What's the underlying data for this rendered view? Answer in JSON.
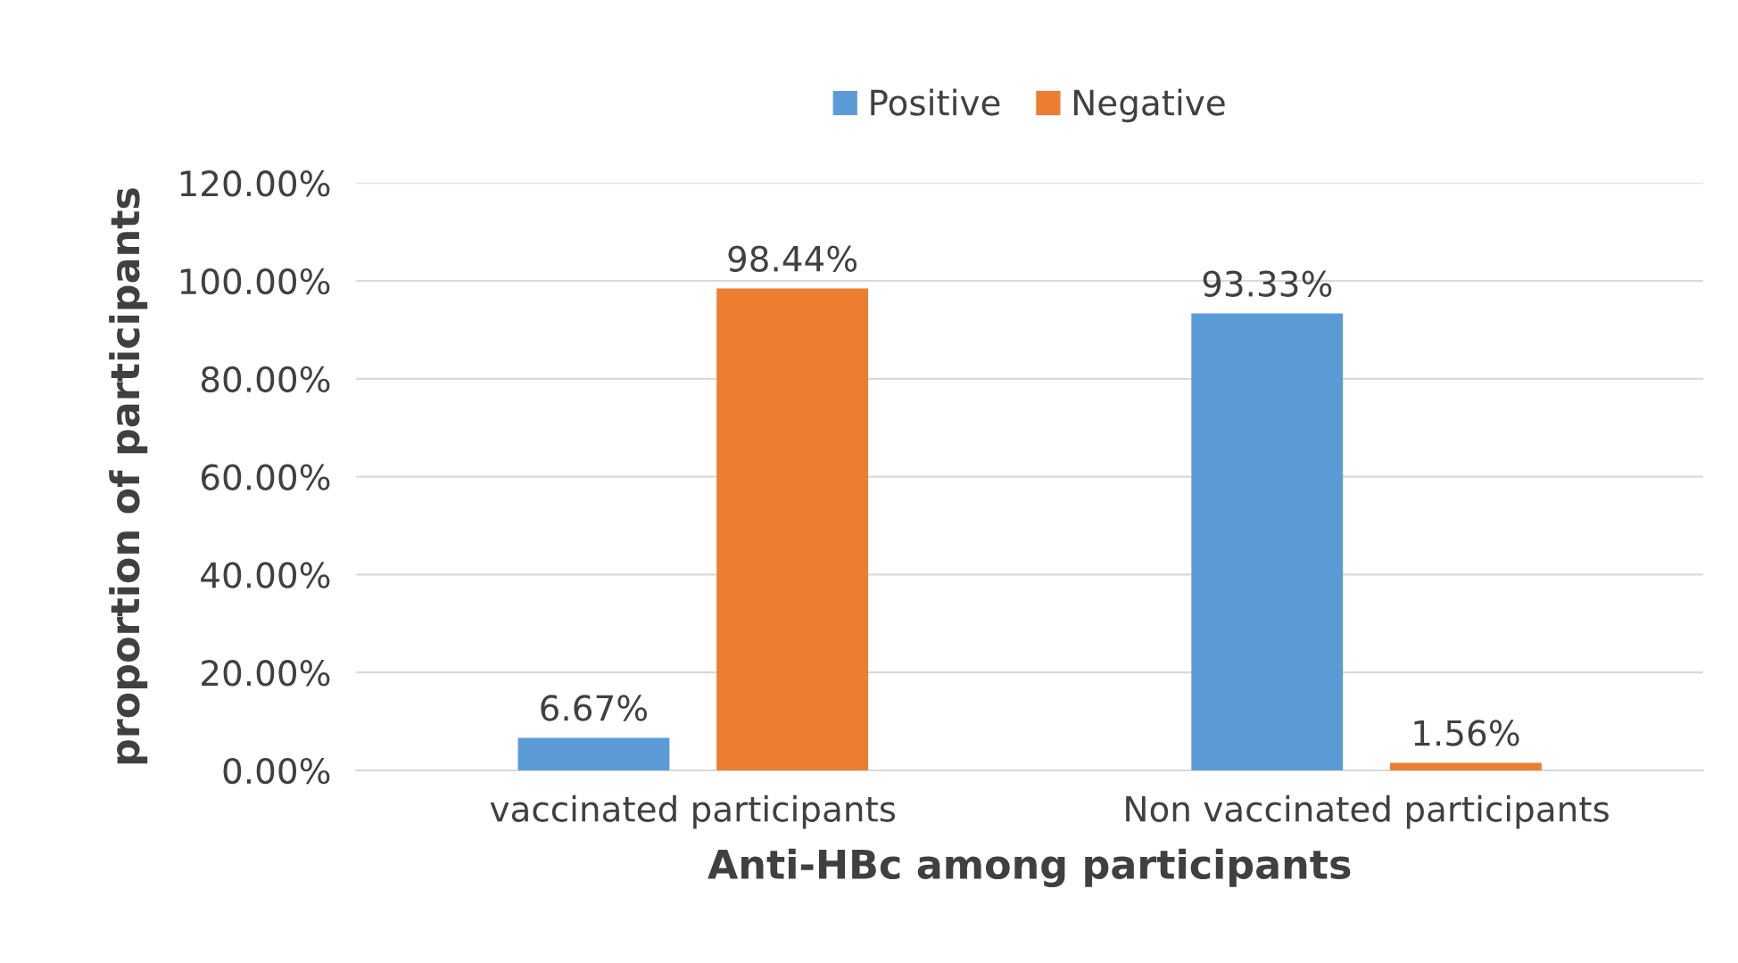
{
  "chart_data": {
    "type": "bar",
    "xlabel": "Anti-HBc among participants",
    "ylabel": "proportion of participants",
    "categories": [
      "vaccinated participants",
      "Non vaccinated participants"
    ],
    "series": [
      {
        "name": "Positive",
        "color": "#5b9bd5",
        "values": [
          6.67,
          93.33
        ],
        "value_labels": [
          "6.67%",
          "93.33%"
        ]
      },
      {
        "name": "Negative",
        "color": "#ed7d31",
        "values": [
          98.44,
          1.56
        ],
        "value_labels": [
          "98.44%",
          "1.56%"
        ]
      }
    ],
    "ylim": [
      0,
      120
    ],
    "yticks": [
      {
        "value": 0,
        "label": "0.00%"
      },
      {
        "value": 20,
        "label": "20.00%"
      },
      {
        "value": 40,
        "label": "40.00%"
      },
      {
        "value": 60,
        "label": "60.00%"
      },
      {
        "value": 80,
        "label": "80.00%"
      },
      {
        "value": 100,
        "label": "100.00%"
      },
      {
        "value": 120,
        "label": "120.00%"
      }
    ],
    "grid": "y",
    "legend": "top"
  }
}
